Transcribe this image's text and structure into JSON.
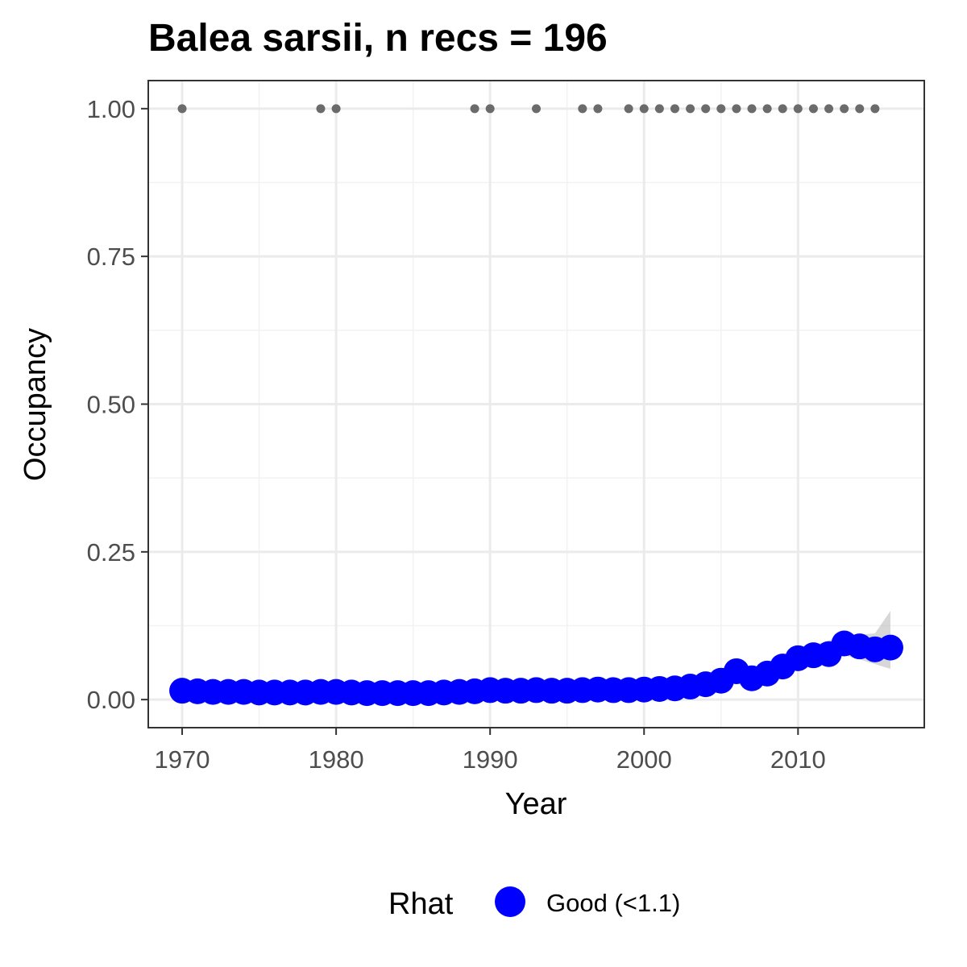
{
  "chart_data": {
    "type": "line",
    "title": "Balea sarsii, n recs = 196",
    "xlabel": "Year",
    "ylabel": "Occupancy",
    "xlim": [
      1967.8,
      1918
    ],
    "ylim": [
      -0.0475,
      1.0475
    ],
    "x_ticks": [
      1970,
      1980,
      1990,
      2000,
      2010
    ],
    "x_tick_labels": [
      "1970",
      "1980",
      "1990",
      "2000",
      "2010"
    ],
    "y_ticks": [
      0,
      0.25,
      0.5,
      0.75,
      1
    ],
    "y_tick_labels": [
      "0.00",
      "0.25",
      "0.50",
      "0.75",
      "1.00"
    ],
    "grid": true,
    "legend": {
      "position": "bottom",
      "title": "Rhat",
      "entries": [
        {
          "label": "Good (<1.1)",
          "color": "#0000ff"
        }
      ]
    },
    "series": [
      {
        "name": "Good (<1.1)",
        "kind": "occupancy-estimate",
        "color": "#0000ff",
        "x": [
          1970,
          1971,
          1972,
          1973,
          1974,
          1975,
          1976,
          1977,
          1978,
          1979,
          1980,
          1981,
          1982,
          1983,
          1984,
          1985,
          1986,
          1987,
          1988,
          1989,
          1990,
          1991,
          1992,
          1993,
          1994,
          1995,
          1996,
          1997,
          1998,
          1999,
          2000,
          2001,
          2002,
          2003,
          2004,
          2005,
          2006,
          2007,
          2008,
          2009,
          2010,
          2011,
          2012,
          2013,
          2014,
          2015,
          2016
        ],
        "y": [
          0.015,
          0.014,
          0.013,
          0.013,
          0.013,
          0.012,
          0.012,
          0.012,
          0.012,
          0.013,
          0.013,
          0.012,
          0.011,
          0.011,
          0.011,
          0.011,
          0.011,
          0.012,
          0.013,
          0.014,
          0.016,
          0.015,
          0.015,
          0.016,
          0.015,
          0.015,
          0.016,
          0.017,
          0.016,
          0.016,
          0.017,
          0.018,
          0.019,
          0.022,
          0.026,
          0.032,
          0.048,
          0.036,
          0.044,
          0.056,
          0.07,
          0.075,
          0.077,
          0.095,
          0.09,
          0.085,
          0.088
        ],
        "ci_lower": [
          0.008,
          0.008,
          0.007,
          0.007,
          0.007,
          0.007,
          0.007,
          0.007,
          0.007,
          0.007,
          0.007,
          0.007,
          0.007,
          0.007,
          0.007,
          0.007,
          0.007,
          0.007,
          0.007,
          0.008,
          0.009,
          0.009,
          0.009,
          0.009,
          0.009,
          0.009,
          0.009,
          0.009,
          0.009,
          0.009,
          0.01,
          0.011,
          0.012,
          0.014,
          0.017,
          0.022,
          0.03,
          0.028,
          0.034,
          0.044,
          0.056,
          0.062,
          0.063,
          0.075,
          0.068,
          0.06,
          0.052
        ],
        "ci_upper": [
          0.022,
          0.021,
          0.02,
          0.02,
          0.019,
          0.018,
          0.018,
          0.018,
          0.018,
          0.019,
          0.019,
          0.018,
          0.017,
          0.017,
          0.017,
          0.017,
          0.017,
          0.018,
          0.019,
          0.02,
          0.022,
          0.022,
          0.022,
          0.022,
          0.022,
          0.022,
          0.023,
          0.023,
          0.023,
          0.023,
          0.024,
          0.025,
          0.027,
          0.03,
          0.035,
          0.042,
          0.06,
          0.05,
          0.056,
          0.068,
          0.084,
          0.092,
          0.1,
          0.11,
          0.11,
          0.112,
          0.15
        ]
      },
      {
        "kind": "record-years",
        "color": "#6b6b6b",
        "x": [
          1970,
          1979,
          1980,
          1989,
          1990,
          1993,
          1996,
          1997,
          1999,
          2000,
          2001,
          2002,
          2003,
          2004,
          2005,
          2006,
          2007,
          2008,
          2009,
          2010,
          2011,
          2012,
          2013,
          2014,
          2015
        ],
        "y": [
          1,
          1,
          1,
          1,
          1,
          1,
          1,
          1,
          1,
          1,
          1,
          1,
          1,
          1,
          1,
          1,
          1,
          1,
          1,
          1,
          1,
          1,
          1,
          1,
          1
        ]
      }
    ]
  }
}
